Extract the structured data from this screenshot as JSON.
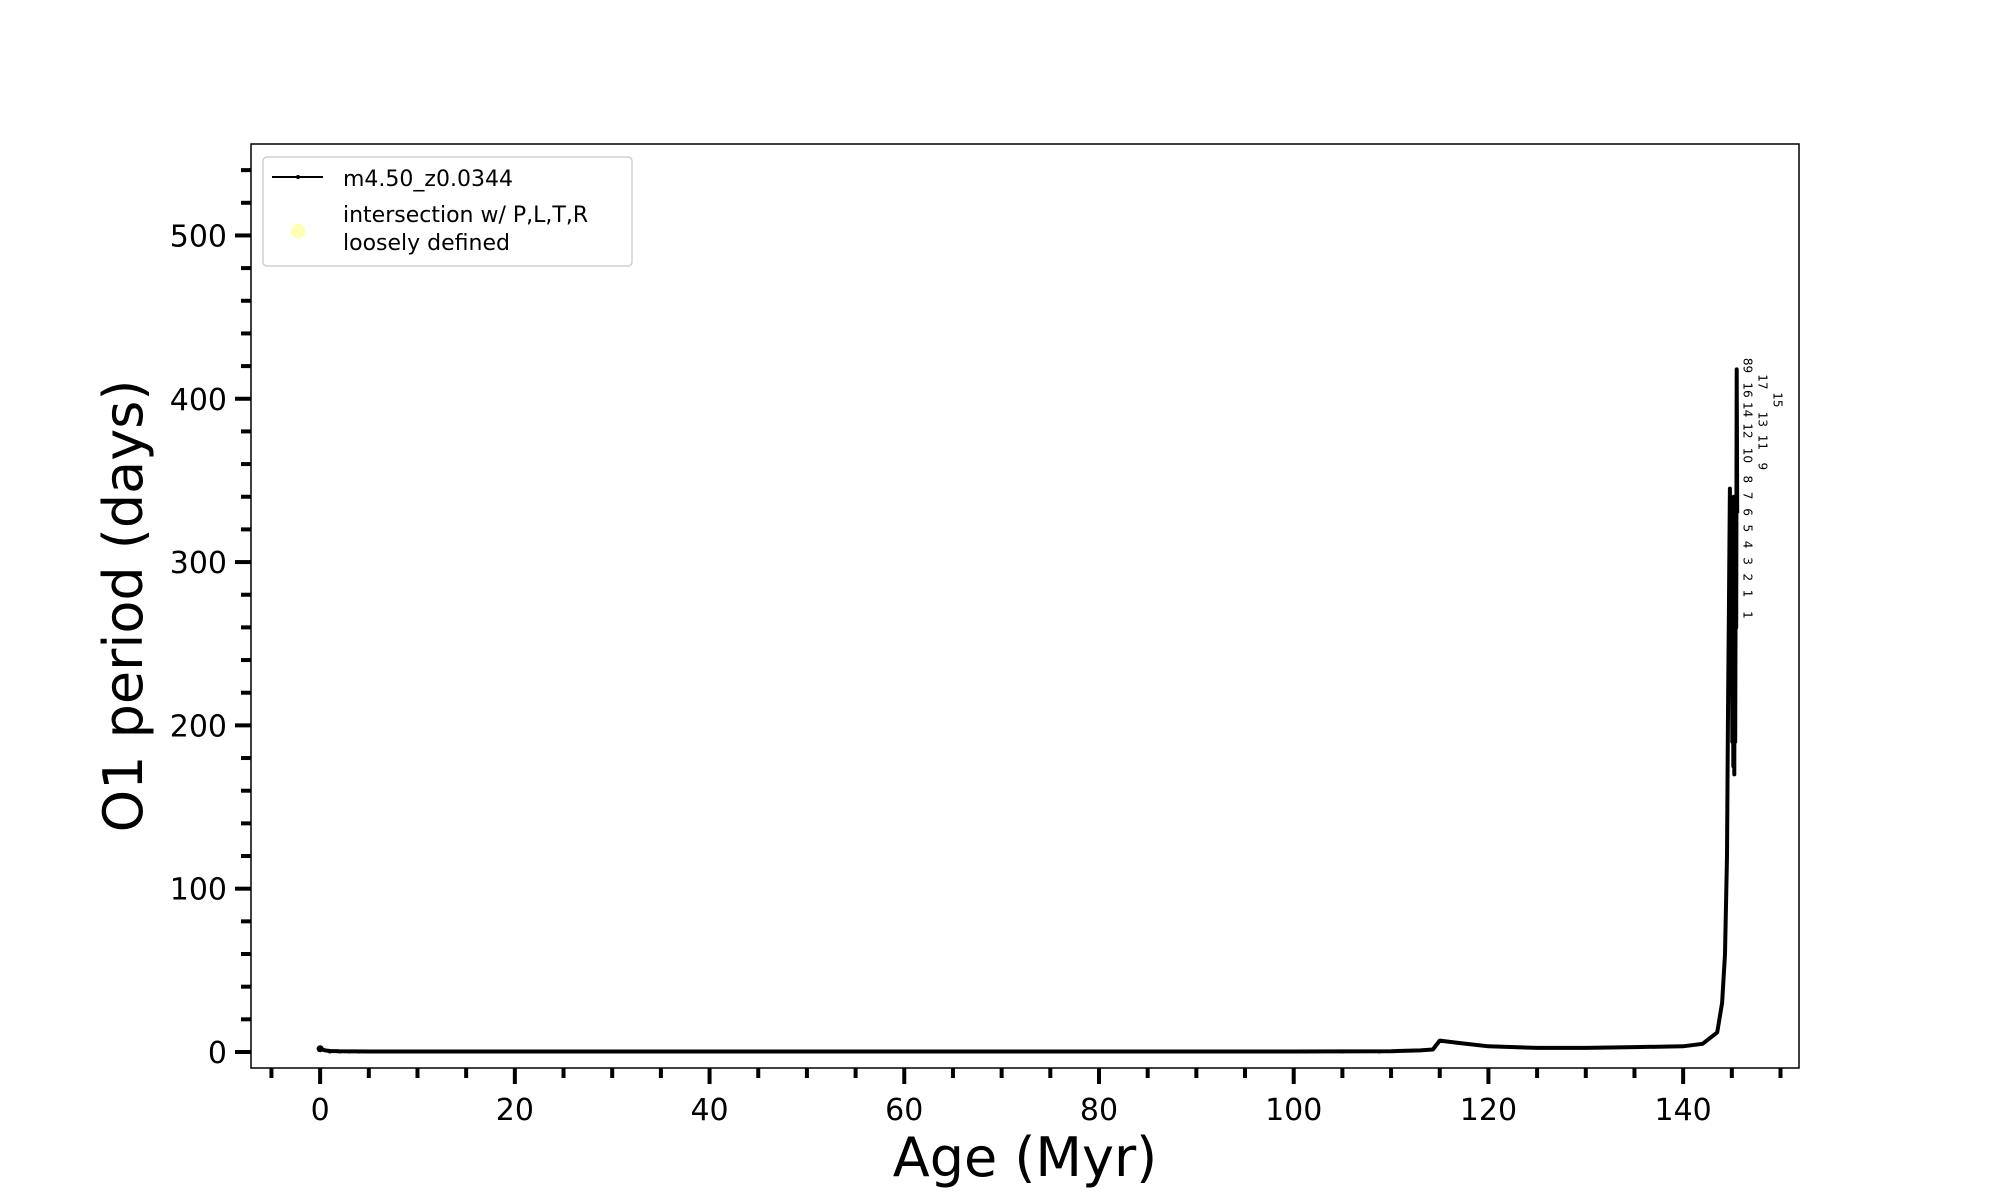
{
  "chart_data": {
    "type": "line",
    "title": "",
    "xlabel": "Age (Myr)",
    "ylabel": "O1 period (days)",
    "xlim": [
      -7.1,
      151.9
    ],
    "ylim": [
      -9.8,
      556
    ],
    "xticks": [
      0,
      20,
      40,
      60,
      80,
      100,
      120,
      140
    ],
    "xtick_labels": [
      "0",
      "20",
      "40",
      "60",
      "80",
      "100",
      "120",
      "140"
    ],
    "x_minor_step": 5,
    "yticks": [
      0,
      100,
      200,
      300,
      400,
      500
    ],
    "ytick_labels": [
      "0",
      "100",
      "200",
      "300",
      "400",
      "500"
    ],
    "y_minor_step": 20,
    "grid": false,
    "legend_position": "upper-left",
    "series": [
      {
        "name": "m4.50_z0.0344",
        "color": "#000000",
        "marker": "dot",
        "points": [
          [
            0,
            2
          ],
          [
            0.5,
            1
          ],
          [
            1,
            0.6
          ],
          [
            2,
            0.4
          ],
          [
            5,
            0.3
          ],
          [
            20,
            0.3
          ],
          [
            60,
            0.3
          ],
          [
            100,
            0.3
          ],
          [
            110,
            0.5
          ],
          [
            113,
            1
          ],
          [
            114.3,
            1.5
          ],
          [
            115,
            7
          ],
          [
            117,
            5.5
          ],
          [
            120,
            3.5
          ],
          [
            125,
            2.5
          ],
          [
            130,
            2.5
          ],
          [
            135,
            3
          ],
          [
            140,
            3.5
          ],
          [
            142,
            5
          ],
          [
            143.5,
            12
          ],
          [
            144,
            30
          ],
          [
            144.3,
            60
          ],
          [
            144.5,
            120
          ],
          [
            144.6,
            200
          ],
          [
            144.7,
            270
          ],
          [
            144.8,
            345
          ],
          [
            144.9,
            250
          ],
          [
            145.0,
            300
          ],
          [
            145.05,
            190
          ],
          [
            145.1,
            330
          ],
          [
            145.15,
            175
          ],
          [
            145.2,
            340
          ],
          [
            145.25,
            170
          ],
          [
            145.3,
            320
          ],
          [
            145.35,
            190
          ],
          [
            145.4,
            300
          ],
          [
            145.45,
            260
          ],
          [
            145.5,
            418
          ],
          [
            145.55,
            330
          ]
        ]
      },
      {
        "name": "intersection w/ P,L,T,R\nloosely defined",
        "legend_lines": [
          "intersection w/ P,L,T,R",
          "loosely defined"
        ],
        "color": "#ffffb0",
        "marker": "circle",
        "points": []
      }
    ],
    "annotations": [
      {
        "text": "1",
        "x": 145.6,
        "y": 270
      },
      {
        "text": "1",
        "x": 145.6,
        "y": 283
      },
      {
        "text": "2",
        "x": 145.6,
        "y": 293
      },
      {
        "text": "3",
        "x": 145.6,
        "y": 303
      },
      {
        "text": "4",
        "x": 145.6,
        "y": 313
      },
      {
        "text": "5",
        "x": 145.6,
        "y": 323
      },
      {
        "text": "6",
        "x": 145.6,
        "y": 333
      },
      {
        "text": "7",
        "x": 145.6,
        "y": 343
      },
      {
        "text": "8",
        "x": 145.6,
        "y": 353
      },
      {
        "text": "9",
        "x": 145.6,
        "y": 361
      },
      {
        "text": "10",
        "x": 145.6,
        "y": 370
      },
      {
        "text": "11",
        "x": 145.6,
        "y": 378
      },
      {
        "text": "12",
        "x": 145.6,
        "y": 385
      },
      {
        "text": "13",
        "x": 145.6,
        "y": 392
      },
      {
        "text": "14",
        "x": 145.6,
        "y": 398
      },
      {
        "text": "15",
        "x": 145.6,
        "y": 404
      },
      {
        "text": "16",
        "x": 145.6,
        "y": 410
      },
      {
        "text": "17",
        "x": 145.6,
        "y": 415
      },
      {
        "text": "89",
        "x": 145.6,
        "y": 425
      }
    ]
  }
}
